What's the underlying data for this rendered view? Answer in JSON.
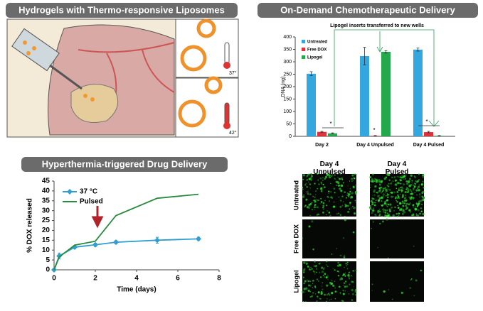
{
  "panels": {
    "illustration": {
      "title": "Hydrogels with Thermo-responsive Liposomes",
      "temp_low": "37°",
      "temp_high": "42°"
    },
    "microscopy": {
      "columns": [
        "Day 4 Unpulsed",
        "Day 4 Pulsed"
      ],
      "rows": [
        "Untreated",
        "Free DOX",
        "Lipogel"
      ]
    }
  },
  "chart_data": [
    {
      "type": "bar",
      "title": "On-Demand Chemotherapeutic Delivery",
      "ylabel": "DNA (ng)",
      "categories": [
        "Day 2",
        "Day 4 Unpulsed",
        "Day 4 Pulsed"
      ],
      "series": [
        {
          "name": "Untreated",
          "color": "#35a7df",
          "values": [
            252,
            323,
            349
          ],
          "errors": [
            8,
            35,
            6
          ]
        },
        {
          "name": "Free DOX",
          "color": "#e0323a",
          "values": [
            18,
            2,
            17
          ],
          "errors": [
            2,
            1,
            3
          ]
        },
        {
          "name": "Lipogel",
          "color": "#23a84b",
          "values": [
            12,
            340,
            2
          ],
          "errors": [
            2,
            5,
            1
          ]
        }
      ],
      "ylim": [
        0,
        400
      ],
      "yticks": [
        0,
        50,
        100,
        150,
        200,
        250,
        300,
        350,
        400
      ],
      "annotation": "Lipogel inserts transferred to new wells",
      "markers": [
        "*",
        "*",
        "*"
      ]
    },
    {
      "type": "line",
      "title": "Hyperthermia-triggered Drug Delivery",
      "xlabel": "Time (days)",
      "ylabel": "% DOX released",
      "x": [
        0,
        0.25,
        1,
        2,
        3,
        5,
        7
      ],
      "series": [
        {
          "name": "37 °C",
          "color": "#2e9fd0",
          "values": [
            0,
            7,
            11.5,
            12.7,
            14,
            15,
            15.7
          ],
          "errors": [
            0,
            1.5,
            0.8,
            0.8,
            0.8,
            1.5,
            0.8
          ]
        },
        {
          "name": "Pulsed",
          "color": "#2a8a3e",
          "values": [
            0,
            6.5,
            12.5,
            14.5,
            27.5,
            36.3,
            38.3
          ]
        }
      ],
      "xlim": [
        0,
        8
      ],
      "xticks": [
        0,
        2,
        4,
        6,
        8
      ],
      "ylim": [
        0,
        45
      ],
      "yticks": [
        0,
        5,
        10,
        15,
        20,
        25,
        30,
        35,
        40,
        45
      ]
    }
  ]
}
